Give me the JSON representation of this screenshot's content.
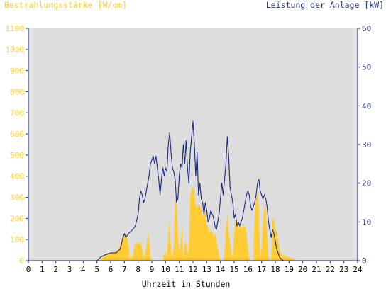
{
  "colors": {
    "irradiance": "#ffcc33",
    "power": "#1a2a80",
    "plot_bg": "#dddddd",
    "axis": "#1a2a80",
    "left_text": "#ffcc33",
    "right_text": "#1a2a80"
  },
  "chart_data": {
    "type": "area",
    "title_left": "Bestrahlungsstärke [W/qm]",
    "title_right": "Leistung der Anlage [kW]",
    "xlabel": "Uhrzeit in Stunden",
    "xlim": [
      0,
      24
    ],
    "xticks": [
      "0",
      "1",
      "2",
      "3",
      "4",
      "5",
      "6",
      "7",
      "8",
      "9",
      "10",
      "11",
      "12",
      "13",
      "14",
      "15",
      "16",
      "17",
      "18",
      "19",
      "20",
      "21",
      "22",
      "23",
      "24"
    ],
    "y_left": {
      "lim": [
        0,
        1100
      ],
      "ticks": [
        "0",
        "100",
        "200",
        "300",
        "400",
        "500",
        "600",
        "700",
        "800",
        "900",
        "1000",
        "1100"
      ]
    },
    "y_right": {
      "lim": [
        0,
        60
      ],
      "ticks": [
        "0",
        "10",
        "20",
        "30",
        "40",
        "50",
        "60"
      ]
    },
    "series": [
      {
        "name": "Bestrahlungsstärke [W/qm]",
        "kind": "area",
        "axis": "left",
        "points": [
          [
            0,
            0
          ],
          [
            5.1,
            0
          ],
          [
            5.3,
            10
          ],
          [
            5.6,
            25
          ],
          [
            6.0,
            35
          ],
          [
            6.3,
            40
          ],
          [
            6.6,
            60
          ],
          [
            6.8,
            100
          ],
          [
            7.0,
            130
          ],
          [
            7.2,
            120
          ],
          [
            7.4,
            10
          ],
          [
            7.6,
            20
          ],
          [
            7.8,
            80
          ],
          [
            8.0,
            85
          ],
          [
            8.2,
            80
          ],
          [
            8.3,
            60
          ],
          [
            8.4,
            10
          ],
          [
            8.6,
            60
          ],
          [
            8.7,
            130
          ],
          [
            8.8,
            100
          ],
          [
            8.9,
            20
          ],
          [
            9.0,
            0
          ],
          [
            9.8,
            0
          ],
          [
            9.9,
            30
          ],
          [
            10.0,
            50
          ],
          [
            10.1,
            10
          ],
          [
            10.2,
            130
          ],
          [
            10.3,
            190
          ],
          [
            10.4,
            40
          ],
          [
            10.5,
            20
          ],
          [
            10.6,
            60
          ],
          [
            10.7,
            290
          ],
          [
            10.8,
            300
          ],
          [
            10.9,
            120
          ],
          [
            11.0,
            40
          ],
          [
            11.1,
            80
          ],
          [
            11.2,
            160
          ],
          [
            11.3,
            20
          ],
          [
            11.4,
            80
          ],
          [
            11.5,
            90
          ],
          [
            11.6,
            30
          ],
          [
            11.7,
            60
          ],
          [
            11.8,
            300
          ],
          [
            11.9,
            340
          ],
          [
            12.0,
            350
          ],
          [
            12.1,
            320
          ],
          [
            12.2,
            260
          ],
          [
            12.3,
            250
          ],
          [
            12.4,
            270
          ],
          [
            12.5,
            260
          ],
          [
            12.6,
            250
          ],
          [
            12.7,
            200
          ],
          [
            12.8,
            220
          ],
          [
            12.9,
            240
          ],
          [
            13.0,
            170
          ],
          [
            13.1,
            160
          ],
          [
            13.2,
            120
          ],
          [
            13.3,
            150
          ],
          [
            13.4,
            140
          ],
          [
            13.5,
            110
          ],
          [
            13.6,
            130
          ],
          [
            13.7,
            100
          ],
          [
            13.8,
            60
          ],
          [
            13.9,
            30
          ],
          [
            14.0,
            0
          ],
          [
            14.2,
            0
          ],
          [
            14.3,
            30
          ],
          [
            14.4,
            160
          ],
          [
            14.5,
            220
          ],
          [
            14.6,
            130
          ],
          [
            14.7,
            80
          ],
          [
            14.8,
            40
          ],
          [
            14.9,
            10
          ],
          [
            15.0,
            120
          ],
          [
            15.1,
            210
          ],
          [
            15.2,
            200
          ],
          [
            15.3,
            140
          ],
          [
            15.4,
            180
          ],
          [
            15.5,
            150
          ],
          [
            15.6,
            160
          ],
          [
            15.7,
            170
          ],
          [
            15.8,
            160
          ],
          [
            15.9,
            130
          ],
          [
            16.0,
            60
          ],
          [
            16.1,
            10
          ],
          [
            16.2,
            0
          ],
          [
            16.4,
            0
          ],
          [
            16.5,
            220
          ],
          [
            16.6,
            300
          ],
          [
            16.7,
            320
          ],
          [
            16.8,
            250
          ],
          [
            16.9,
            10
          ],
          [
            17.0,
            60
          ],
          [
            17.1,
            180
          ],
          [
            17.2,
            250
          ],
          [
            17.3,
            260
          ],
          [
            17.4,
            120
          ],
          [
            17.5,
            20
          ],
          [
            17.6,
            0
          ],
          [
            17.7,
            0
          ],
          [
            17.8,
            190
          ],
          [
            17.9,
            200
          ],
          [
            18.0,
            150
          ],
          [
            18.1,
            140
          ],
          [
            18.2,
            100
          ],
          [
            18.3,
            60
          ],
          [
            18.4,
            30
          ],
          [
            18.6,
            25
          ],
          [
            18.8,
            20
          ],
          [
            19.0,
            15
          ],
          [
            19.2,
            10
          ],
          [
            19.4,
            5
          ],
          [
            19.6,
            0
          ],
          [
            24,
            0
          ]
        ]
      },
      {
        "name": "Leistung der Anlage [kW]",
        "kind": "line",
        "axis": "right",
        "points": [
          [
            0,
            0
          ],
          [
            5.0,
            0
          ],
          [
            5.3,
            1
          ],
          [
            5.6,
            1.5
          ],
          [
            6.0,
            2
          ],
          [
            6.4,
            2
          ],
          [
            6.7,
            3
          ],
          [
            6.9,
            6
          ],
          [
            7.0,
            7
          ],
          [
            7.1,
            6
          ],
          [
            7.3,
            7
          ],
          [
            7.6,
            8
          ],
          [
            7.8,
            9
          ],
          [
            8.0,
            12
          ],
          [
            8.1,
            16
          ],
          [
            8.2,
            18
          ],
          [
            8.3,
            17
          ],
          [
            8.4,
            15
          ],
          [
            8.5,
            16
          ],
          [
            8.6,
            18
          ],
          [
            8.8,
            22
          ],
          [
            8.9,
            25
          ],
          [
            9.0,
            26
          ],
          [
            9.1,
            27
          ],
          [
            9.2,
            25
          ],
          [
            9.3,
            27
          ],
          [
            9.4,
            24
          ],
          [
            9.5,
            21
          ],
          [
            9.6,
            17
          ],
          [
            9.7,
            21
          ],
          [
            9.8,
            24
          ],
          [
            9.9,
            22
          ],
          [
            10.0,
            24
          ],
          [
            10.1,
            23
          ],
          [
            10.2,
            30
          ],
          [
            10.3,
            33
          ],
          [
            10.4,
            28
          ],
          [
            10.5,
            24
          ],
          [
            10.6,
            23
          ],
          [
            10.7,
            21
          ],
          [
            10.8,
            15
          ],
          [
            10.9,
            16
          ],
          [
            11.0,
            22
          ],
          [
            11.1,
            25
          ],
          [
            11.2,
            24
          ],
          [
            11.3,
            30
          ],
          [
            11.4,
            25
          ],
          [
            11.5,
            31
          ],
          [
            11.6,
            24
          ],
          [
            11.7,
            20
          ],
          [
            11.8,
            28
          ],
          [
            11.9,
            32
          ],
          [
            12.0,
            36
          ],
          [
            12.1,
            30
          ],
          [
            12.2,
            22
          ],
          [
            12.3,
            28
          ],
          [
            12.4,
            17
          ],
          [
            12.5,
            20
          ],
          [
            12.6,
            16
          ],
          [
            12.7,
            15
          ],
          [
            12.8,
            12
          ],
          [
            12.9,
            15
          ],
          [
            13.0,
            13
          ],
          [
            13.1,
            10
          ],
          [
            13.2,
            11
          ],
          [
            13.3,
            13
          ],
          [
            13.4,
            12
          ],
          [
            13.5,
            11
          ],
          [
            13.6,
            9
          ],
          [
            13.7,
            8
          ],
          [
            13.8,
            10
          ],
          [
            13.9,
            12
          ],
          [
            14.0,
            16
          ],
          [
            14.1,
            20
          ],
          [
            14.2,
            17
          ],
          [
            14.3,
            21
          ],
          [
            14.4,
            25
          ],
          [
            14.5,
            32
          ],
          [
            14.6,
            27
          ],
          [
            14.7,
            19
          ],
          [
            14.8,
            17
          ],
          [
            14.9,
            15
          ],
          [
            15.0,
            11
          ],
          [
            15.1,
            12
          ],
          [
            15.2,
            9
          ],
          [
            15.3,
            10
          ],
          [
            15.4,
            9
          ],
          [
            15.5,
            10
          ],
          [
            15.6,
            11
          ],
          [
            15.7,
            13
          ],
          [
            15.8,
            15
          ],
          [
            15.9,
            17
          ],
          [
            16.0,
            18
          ],
          [
            16.1,
            17
          ],
          [
            16.2,
            14
          ],
          [
            16.3,
            13
          ],
          [
            16.5,
            15
          ],
          [
            16.6,
            17
          ],
          [
            16.7,
            20
          ],
          [
            16.8,
            21
          ],
          [
            16.9,
            18
          ],
          [
            17.0,
            17
          ],
          [
            17.1,
            16
          ],
          [
            17.2,
            17
          ],
          [
            17.3,
            16
          ],
          [
            17.4,
            14
          ],
          [
            17.5,
            10
          ],
          [
            17.6,
            8
          ],
          [
            17.7,
            6
          ],
          [
            17.8,
            8
          ],
          [
            17.9,
            7
          ],
          [
            18.0,
            5
          ],
          [
            18.1,
            3
          ],
          [
            18.2,
            2
          ],
          [
            18.3,
            1
          ],
          [
            18.4,
            0.5
          ],
          [
            18.6,
            0
          ],
          [
            24,
            0
          ]
        ]
      }
    ]
  }
}
